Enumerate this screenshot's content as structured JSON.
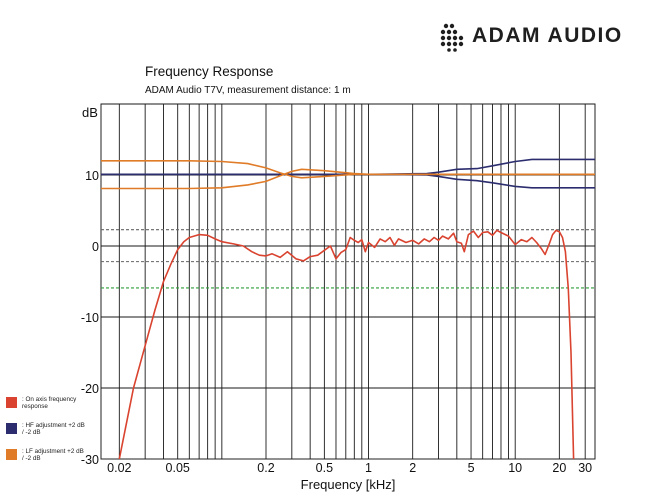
{
  "brand": {
    "name": "ADAM AUDIO"
  },
  "chart_data": {
    "type": "line",
    "title": "Frequency Response",
    "subtitle": "ADAM Audio T7V, measurement distance: 1 m",
    "ylabel": "dB",
    "xlabel": "Frequency [kHz]",
    "xscale": "log",
    "xlim": [
      0.015,
      35
    ],
    "ylim": [
      -30,
      20
    ],
    "grid": true,
    "legend_position": "bottom-left outside",
    "x_ticks": [
      {
        "value": 0.02,
        "label": "0.02"
      },
      {
        "value": 0.05,
        "label": "0.05"
      },
      {
        "value": 0.2,
        "label": "0.2"
      },
      {
        "value": 0.5,
        "label": "0.5"
      },
      {
        "value": 1,
        "label": "1"
      },
      {
        "value": 2,
        "label": "2"
      },
      {
        "value": 5,
        "label": "5"
      },
      {
        "value": 10,
        "label": "10"
      },
      {
        "value": 20,
        "label": "20"
      },
      {
        "value": 30,
        "label": "30"
      }
    ],
    "y_ticks": [
      {
        "value": 10,
        "label": "10"
      },
      {
        "value": 0,
        "label": "0"
      },
      {
        "value": -10,
        "label": "-10"
      },
      {
        "value": -20,
        "label": "-20"
      },
      {
        "value": -30,
        "label": "-30"
      }
    ],
    "reference_lines": [
      {
        "y": 2.3,
        "style": "dashed",
        "color": "#666666"
      },
      {
        "y": -2.2,
        "style": "dashed",
        "color": "#666666"
      },
      {
        "y": -5.9,
        "style": "dashed",
        "color": "#2e9e3a"
      }
    ],
    "series": [
      {
        "name": "On axis frequency response",
        "legend_label": ": On axis frequency response",
        "color": "#d9432f",
        "points": [
          [
            0.02,
            -30
          ],
          [
            0.025,
            -20
          ],
          [
            0.03,
            -14
          ],
          [
            0.035,
            -9
          ],
          [
            0.04,
            -5
          ],
          [
            0.045,
            -2.5
          ],
          [
            0.05,
            -0.5
          ],
          [
            0.055,
            0.6
          ],
          [
            0.06,
            1.2
          ],
          [
            0.07,
            1.6
          ],
          [
            0.08,
            1.5
          ],
          [
            0.09,
            1.0
          ],
          [
            0.1,
            0.6
          ],
          [
            0.12,
            0.3
          ],
          [
            0.14,
            0
          ],
          [
            0.16,
            -0.8
          ],
          [
            0.18,
            -1.3
          ],
          [
            0.2,
            -1.4
          ],
          [
            0.22,
            -1.1
          ],
          [
            0.25,
            -1.6
          ],
          [
            0.28,
            -0.8
          ],
          [
            0.32,
            -1.8
          ],
          [
            0.36,
            -2.1
          ],
          [
            0.4,
            -1.5
          ],
          [
            0.45,
            -1.3
          ],
          [
            0.5,
            -0.6
          ],
          [
            0.55,
            0
          ],
          [
            0.6,
            -1.8
          ],
          [
            0.65,
            -0.9
          ],
          [
            0.7,
            -0.5
          ],
          [
            0.75,
            1.2
          ],
          [
            0.8,
            0.8
          ],
          [
            0.85,
            0.5
          ],
          [
            0.9,
            0.9
          ],
          [
            0.95,
            -0.8
          ],
          [
            1.0,
            0.5
          ],
          [
            1.1,
            -0.2
          ],
          [
            1.2,
            1.0
          ],
          [
            1.3,
            0.6
          ],
          [
            1.4,
            1.2
          ],
          [
            1.5,
            0.1
          ],
          [
            1.6,
            1.0
          ],
          [
            1.8,
            0.5
          ],
          [
            2.0,
            0.8
          ],
          [
            2.2,
            0.3
          ],
          [
            2.4,
            1.0
          ],
          [
            2.6,
            0.6
          ],
          [
            2.8,
            1.2
          ],
          [
            3.0,
            0.8
          ],
          [
            3.2,
            1.4
          ],
          [
            3.5,
            1.0
          ],
          [
            3.8,
            1.8
          ],
          [
            4.0,
            0.6
          ],
          [
            4.3,
            0.4
          ],
          [
            4.5,
            -0.8
          ],
          [
            4.8,
            1.6
          ],
          [
            5.2,
            2.1
          ],
          [
            5.6,
            1.2
          ],
          [
            6.0,
            1.9
          ],
          [
            6.5,
            2.0
          ],
          [
            7.0,
            1.5
          ],
          [
            7.5,
            2.2
          ],
          [
            8.0,
            1.9
          ],
          [
            9.0,
            1.4
          ],
          [
            10,
            0.2
          ],
          [
            11,
            0.9
          ],
          [
            12,
            0.6
          ],
          [
            13,
            1.2
          ],
          [
            14,
            0.5
          ],
          [
            15,
            -0.3
          ],
          [
            16,
            -1.2
          ],
          [
            17,
            0.2
          ],
          [
            18,
            1.6
          ],
          [
            19,
            2.2
          ],
          [
            20,
            2.0
          ],
          [
            21,
            1.2
          ],
          [
            22,
            -0.8
          ],
          [
            23,
            -6
          ],
          [
            24,
            -15
          ],
          [
            25,
            -30
          ]
        ]
      },
      {
        "name": "HF adjustment +2 dB / -2 dB",
        "legend_label": ": HF adjustment +2 dB / -2 dB",
        "color": "#2b2d6e",
        "lines": [
          [
            [
              0.015,
              10.1
            ],
            [
              1.0,
              10.1
            ],
            [
              2.5,
              10.2
            ],
            [
              3.0,
              10.4
            ],
            [
              4.0,
              10.8
            ],
            [
              5.5,
              10.9
            ],
            [
              7.0,
              11.3
            ],
            [
              10,
              11.9
            ],
            [
              13,
              12.2
            ],
            [
              35,
              12.2
            ]
          ],
          [
            [
              0.015,
              10.1
            ],
            [
              1.0,
              10.1
            ],
            [
              2.5,
              10.0
            ],
            [
              3.0,
              9.8
            ],
            [
              4.0,
              9.4
            ],
            [
              5.5,
              9.2
            ],
            [
              7.0,
              8.9
            ],
            [
              10,
              8.4
            ],
            [
              13,
              8.2
            ],
            [
              35,
              8.2
            ]
          ]
        ]
      },
      {
        "name": "LF adjustment +2 dB / -2 dB",
        "legend_label": ": LF adjustment +2 dB / -2 dB",
        "color": "#e07b27",
        "lines": [
          [
            [
              0.015,
              12.0
            ],
            [
              0.06,
              12.0
            ],
            [
              0.1,
              11.9
            ],
            [
              0.15,
              11.6
            ],
            [
              0.2,
              11.0
            ],
            [
              0.25,
              10.3
            ],
            [
              0.3,
              9.8
            ],
            [
              0.35,
              9.6
            ],
            [
              0.5,
              9.8
            ],
            [
              0.8,
              10.1
            ],
            [
              1.0,
              10.1
            ],
            [
              35,
              10.1
            ]
          ],
          [
            [
              0.015,
              8.1
            ],
            [
              0.06,
              8.1
            ],
            [
              0.1,
              8.2
            ],
            [
              0.15,
              8.6
            ],
            [
              0.2,
              9.1
            ],
            [
              0.25,
              9.9
            ],
            [
              0.3,
              10.5
            ],
            [
              0.35,
              10.8
            ],
            [
              0.5,
              10.6
            ],
            [
              0.8,
              10.2
            ],
            [
              1.0,
              10.1
            ],
            [
              35,
              10.1
            ]
          ]
        ]
      }
    ]
  }
}
